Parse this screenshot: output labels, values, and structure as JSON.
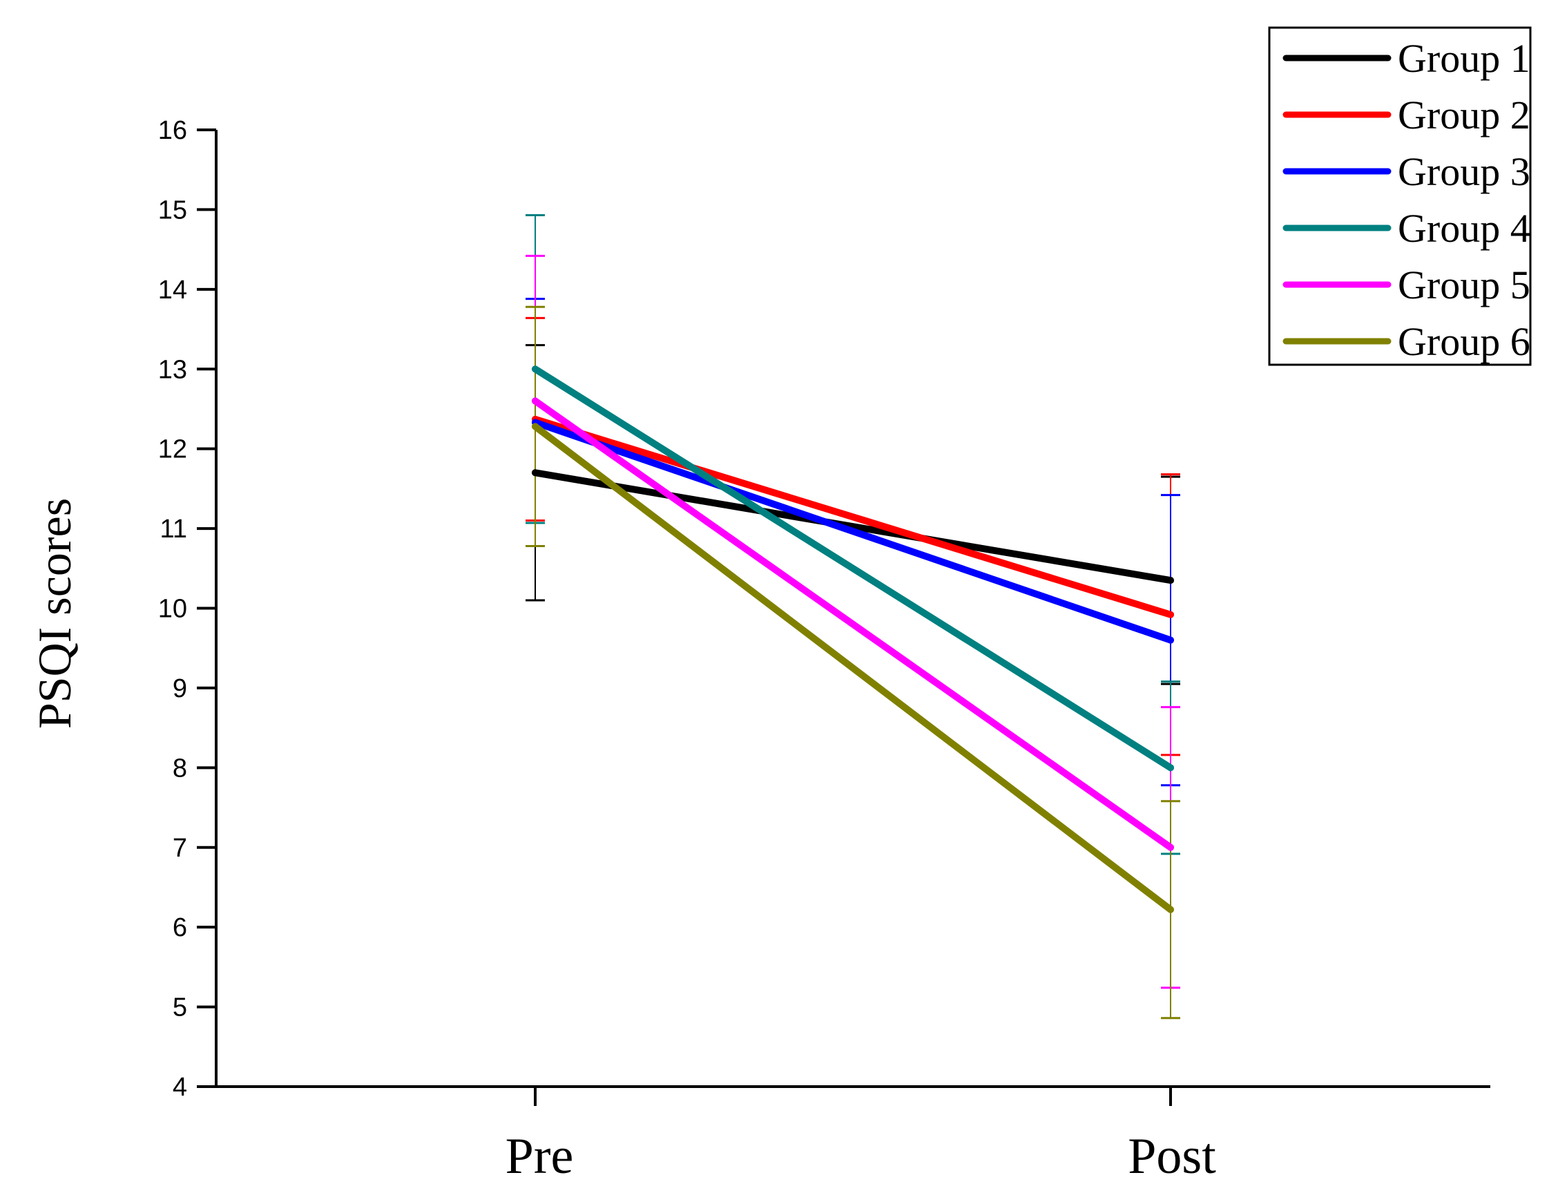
{
  "chart_data": {
    "type": "line",
    "title": "",
    "xlabel": "",
    "ylabel": "PSQI scores",
    "categories": [
      "Pre",
      "Post"
    ],
    "ylim": [
      4,
      16
    ],
    "yticks": [
      4,
      5,
      6,
      7,
      8,
      9,
      10,
      11,
      12,
      13,
      14,
      15,
      16
    ],
    "legend_position": "top-right",
    "series": [
      {
        "name": "Group 1",
        "color": "#000000",
        "values": [
          11.7,
          10.35
        ],
        "errors": [
          1.6,
          1.3
        ]
      },
      {
        "name": "Group 2",
        "color": "#ff0000",
        "values": [
          12.37,
          9.92
        ],
        "errors": [
          1.27,
          1.76
        ]
      },
      {
        "name": "Group 3",
        "color": "#0000ff",
        "values": [
          12.33,
          9.6
        ],
        "errors": [
          1.55,
          1.82
        ]
      },
      {
        "name": "Group 4",
        "color": "#008080",
        "values": [
          13.0,
          8.0
        ],
        "errors": [
          1.93,
          1.08
        ]
      },
      {
        "name": "Group 5",
        "color": "#ff00ff",
        "values": [
          12.6,
          7.0
        ],
        "errors": [
          1.82,
          1.76
        ]
      },
      {
        "name": "Group 6",
        "color": "#808000",
        "values": [
          12.28,
          6.22
        ],
        "errors": [
          1.5,
          1.36
        ]
      }
    ]
  }
}
